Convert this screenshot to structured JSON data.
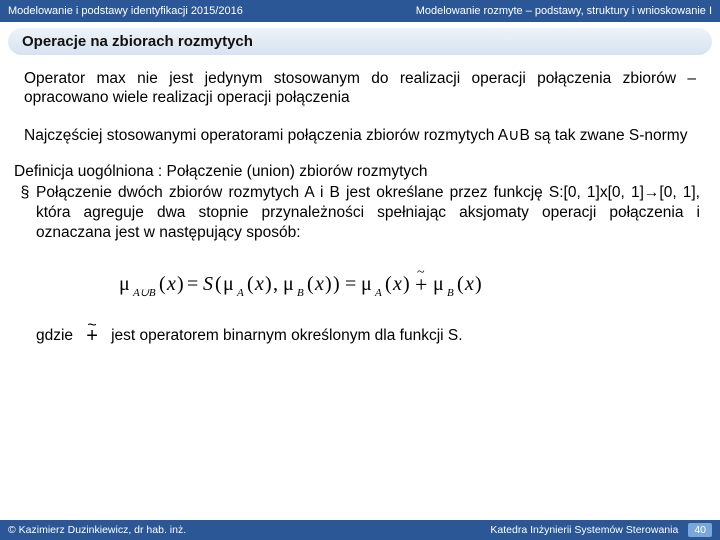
{
  "header": {
    "left": "Modelowanie i podstawy identyfikacji 2015/2016",
    "right": "Modelowanie rozmyte – podstawy, struktury i wnioskowanie I"
  },
  "section_title": "Operacje na zbiorach rozmytych",
  "para1": "Operator max nie jest jedynym stosowanym do realizacji operacji połączenia zbiorów – opracowano wiele realizacji operacji połączenia",
  "para2": "Najczęściej stosowanymi operatorami połączenia zbiorów rozmytych A∪B są tak zwane S-normy",
  "def_head": "Definicja uogólniona : Połączenie (union) zbiorów rozmytych",
  "bullet_symbol": "§",
  "bullet_text": "Połączenie dwóch zbiorów rozmytych A i B jest określane przez funkcję S:[0, 1]x[0, 1]→[0, 1], która agreguje dwa stopnie przynależności spełniając aksjomaty operacji połączenia i oznaczana jest w następujący sposób:",
  "formula": {
    "stroke": "#000000",
    "fontsize": 20
  },
  "gdzie_label": "gdzie",
  "gdzie_rest": "jest operatorem binarnym określonym dla funkcji S.",
  "footer": {
    "left": "© Kazimierz Duzinkiewicz, dr hab. inż.",
    "right": "Katedra Inżynierii Systemów Sterowania",
    "page": "40"
  },
  "colors": {
    "header_bg": "#2b5797",
    "section_bg_top": "#eef3f9",
    "section_bg_bot": "#d6e3f0",
    "pagebox_bg": "#7aa7d9"
  }
}
